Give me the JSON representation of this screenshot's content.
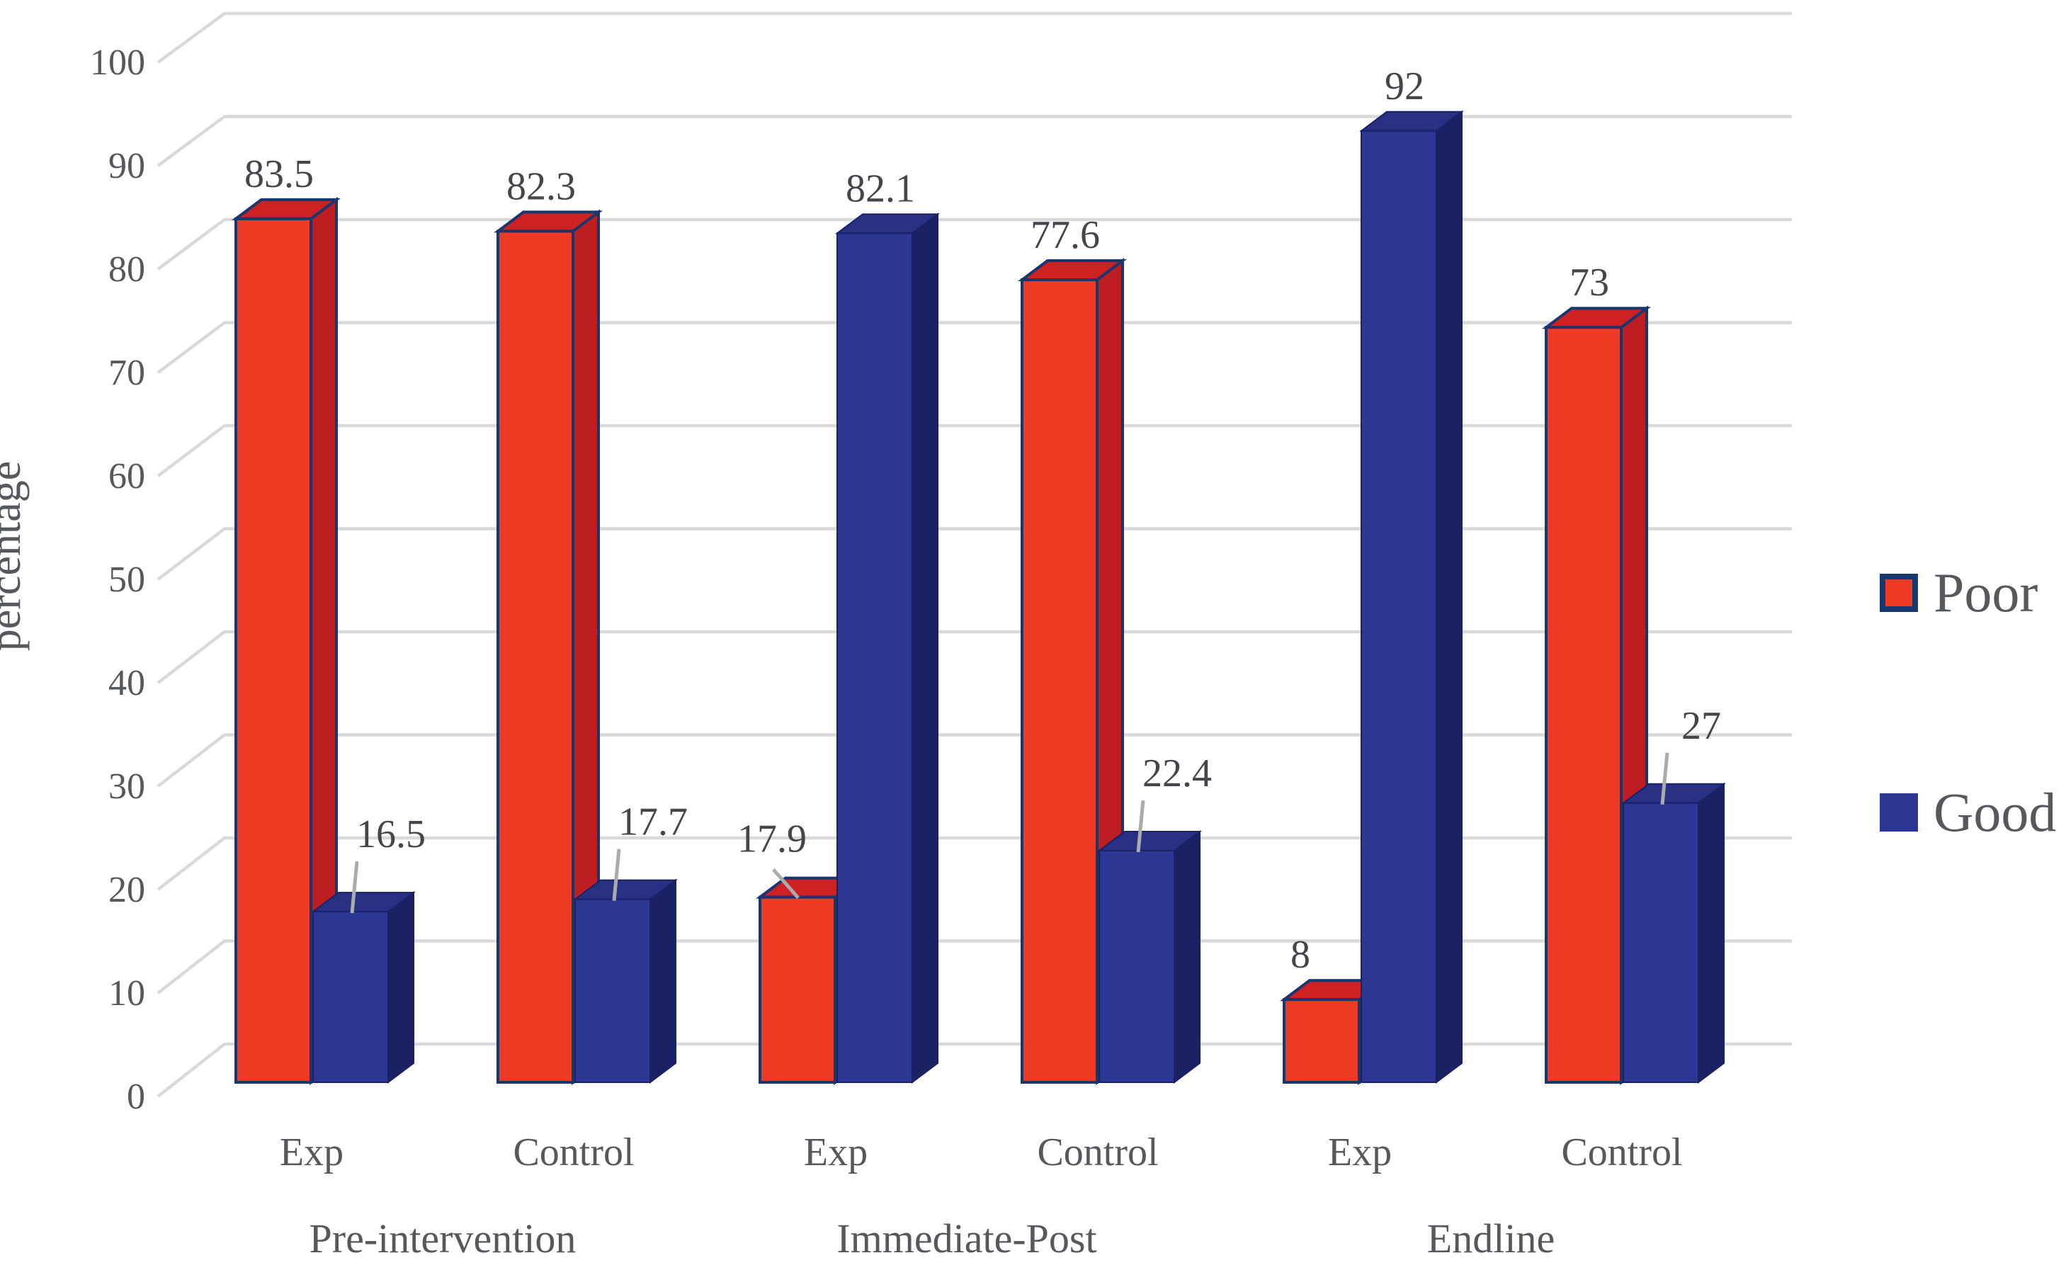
{
  "chart_data": {
    "type": "bar",
    "variant": "3d-clustered-column",
    "title": "",
    "xlabel": "",
    "ylabel": "percentage",
    "ylim": [
      0,
      100
    ],
    "yticks": [
      0,
      10,
      20,
      30,
      40,
      50,
      60,
      70,
      80,
      90,
      100
    ],
    "grid": true,
    "legend_position": "right",
    "categories": [
      "Exp",
      "Control",
      "Exp",
      "Control",
      "Exp",
      "Control"
    ],
    "sections": [
      {
        "label": "Pre-intervention",
        "from": 0,
        "to": 1
      },
      {
        "label": "Immediate-Post",
        "from": 2,
        "to": 3
      },
      {
        "label": "Endline",
        "from": 4,
        "to": 5
      }
    ],
    "series": [
      {
        "name": "Poor",
        "color": "#ee3b26",
        "values": [
          83.5,
          82.3,
          17.9,
          77.6,
          8,
          73
        ],
        "callouts": [
          false,
          false,
          true,
          false,
          false,
          false
        ]
      },
      {
        "name": "Good",
        "color": "#2b3792",
        "values": [
          16.5,
          17.7,
          82.1,
          22.4,
          92,
          27
        ],
        "callouts": [
          true,
          true,
          false,
          true,
          false,
          true
        ]
      }
    ]
  },
  "colors": {
    "poor_front": "#ee3b26",
    "poor_top": "#ce2222",
    "poor_side": "#be1e22",
    "poor_outline": "#17376e",
    "good_front": "#2b3792",
    "good_top": "#283183",
    "good_side": "#1b2263",
    "good_outline": "#1a2166",
    "gridline": "#d9d9d9",
    "leader_line": "#ababab",
    "axis_text": "#55585c",
    "data_label_text": "#43474c"
  }
}
